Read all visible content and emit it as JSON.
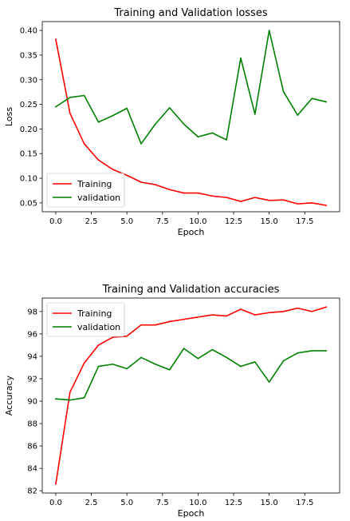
{
  "chart_data": [
    {
      "type": "line",
      "title": "Training and Validation losses",
      "xlabel": "Epoch",
      "ylabel": "Loss",
      "xlim": [
        -0.95,
        19.95
      ],
      "ylim": [
        0.032,
        0.418
      ],
      "xticks": [
        0,
        2.5,
        5,
        7.5,
        10,
        12.5,
        15,
        17.5
      ],
      "xtick_labels": [
        "0.0",
        "2.5",
        "5.0",
        "7.5",
        "10.0",
        "12.5",
        "15.0",
        "17.5"
      ],
      "yticks": [
        0.05,
        0.1,
        0.15,
        0.2,
        0.25,
        0.3,
        0.35,
        0.4
      ],
      "ytick_labels": [
        "0.05",
        "0.10",
        "0.15",
        "0.20",
        "0.25",
        "0.30",
        "0.35",
        "0.40"
      ],
      "legend_position": "bottom-left",
      "grid": false,
      "x": [
        0,
        1,
        2,
        3,
        4,
        5,
        6,
        7,
        8,
        9,
        10,
        11,
        12,
        13,
        14,
        15,
        16,
        17,
        18,
        19
      ],
      "series": [
        {
          "name": "Training",
          "color": "#ff0000",
          "values": [
            0.382,
            0.232,
            0.17,
            0.137,
            0.118,
            0.106,
            0.092,
            0.087,
            0.077,
            0.07,
            0.07,
            0.064,
            0.061,
            0.053,
            0.061,
            0.055,
            0.056,
            0.048,
            0.05,
            0.045
          ]
        },
        {
          "name": "validation",
          "color": "#008000",
          "values": [
            0.245,
            0.264,
            0.268,
            0.214,
            0.227,
            0.242,
            0.17,
            0.21,
            0.243,
            0.21,
            0.184,
            0.192,
            0.178,
            0.344,
            0.23,
            0.4,
            0.276,
            0.228,
            0.262,
            0.255
          ]
        }
      ]
    },
    {
      "type": "line",
      "title": "Training and Validation accuracies",
      "xlabel": "Epoch",
      "ylabel": "Accuracy",
      "xlim": [
        -0.95,
        19.95
      ],
      "ylim": [
        81.8,
        99.2
      ],
      "xticks": [
        0,
        2.5,
        5,
        7.5,
        10,
        12.5,
        15,
        17.5
      ],
      "xtick_labels": [
        "0.0",
        "2.5",
        "5.0",
        "7.5",
        "10.0",
        "12.5",
        "15.0",
        "17.5"
      ],
      "yticks": [
        82,
        84,
        86,
        88,
        90,
        92,
        94,
        96,
        98
      ],
      "ytick_labels": [
        "82",
        "84",
        "86",
        "88",
        "90",
        "92",
        "94",
        "96",
        "98"
      ],
      "legend_position": "top-left",
      "grid": false,
      "x": [
        0,
        1,
        2,
        3,
        4,
        5,
        6,
        7,
        8,
        9,
        10,
        11,
        12,
        13,
        14,
        15,
        16,
        17,
        18,
        19
      ],
      "series": [
        {
          "name": "Training",
          "color": "#ff0000",
          "values": [
            82.6,
            90.8,
            93.4,
            95.0,
            95.7,
            95.8,
            96.8,
            96.8,
            97.1,
            97.3,
            97.5,
            97.7,
            97.6,
            98.2,
            97.7,
            97.9,
            98.0,
            98.3,
            98.0,
            98.4
          ]
        },
        {
          "name": "validation",
          "color": "#008000",
          "values": [
            90.2,
            90.1,
            90.3,
            93.1,
            93.3,
            92.9,
            93.9,
            93.3,
            92.8,
            94.7,
            93.8,
            94.6,
            93.9,
            93.1,
            93.5,
            91.7,
            93.6,
            94.3,
            94.5,
            94.5
          ]
        }
      ]
    }
  ]
}
